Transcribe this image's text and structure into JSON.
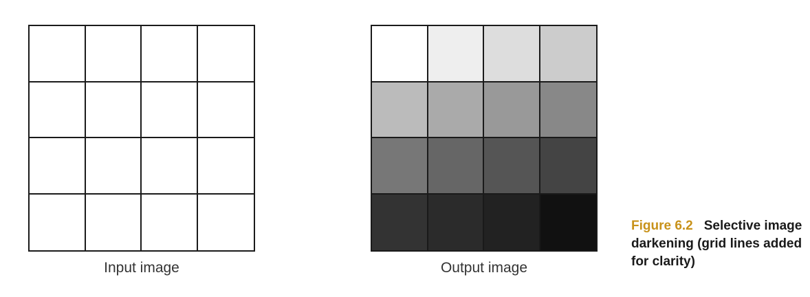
{
  "input_panel": {
    "caption": "Input image",
    "cell_grays": [
      [
        255,
        255,
        255,
        255
      ],
      [
        255,
        255,
        255,
        255
      ],
      [
        255,
        255,
        255,
        255
      ],
      [
        255,
        255,
        255,
        255
      ]
    ]
  },
  "output_panel": {
    "caption": "Output image",
    "cell_grays": [
      [
        255,
        238,
        221,
        204
      ],
      [
        187,
        170,
        153,
        136
      ],
      [
        119,
        102,
        85,
        68
      ],
      [
        51,
        43,
        34,
        17
      ]
    ]
  },
  "figure": {
    "label": "Figure 6.2",
    "text": "Selective image darkening (grid lines added for clarity)"
  },
  "colors": {
    "figure_label": "#c8921a",
    "grid_lines": "#1a1a1a",
    "caption_text": "#333333"
  }
}
